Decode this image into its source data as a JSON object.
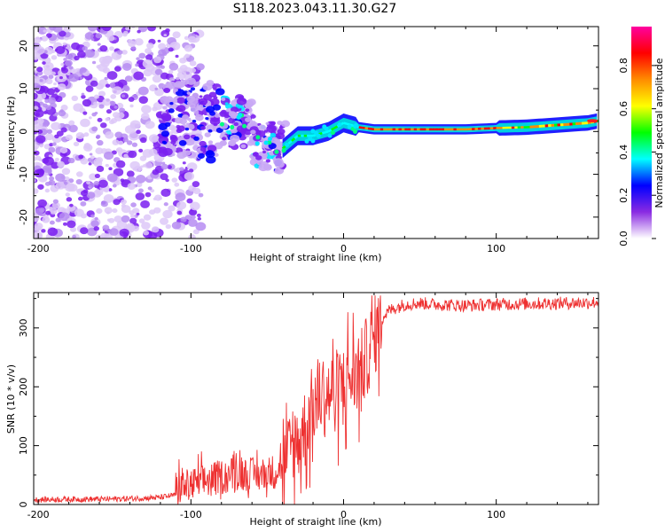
{
  "title": "S118.2023.043.11.30.G27",
  "chart_data": [
    {
      "type": "heatmap",
      "xlabel": "Height of straight line (km)",
      "ylabel": "Frequency (Hz)",
      "xlim": [
        -203,
        167
      ],
      "ylim": [
        -25,
        24.5
      ],
      "x_ticks": [
        -200,
        -100,
        0,
        100
      ],
      "y_ticks": [
        -20,
        -10,
        0,
        10,
        20
      ],
      "colorbar": {
        "label": "Normalized spectral amplitude",
        "range": [
          0,
          1
        ],
        "ticks": [
          "0.0",
          "0.2",
          "0.4",
          "0.6",
          "0.8"
        ],
        "colors": [
          "#ffffff",
          "#8a2be2",
          "#0000ff",
          "#00ffff",
          "#00ff00",
          "#ffff00",
          "#ff8c00",
          "#ff0000",
          "#ff00a0"
        ]
      },
      "ridge": {
        "x": [
          -60,
          -50,
          -40,
          -30,
          -20,
          -10,
          0,
          10,
          20,
          40,
          60,
          80,
          100,
          120,
          140,
          160,
          167
        ],
        "frequency_hz": [
          -2,
          -3,
          -4,
          -1,
          -1,
          0,
          2,
          1,
          0.5,
          0.5,
          0.5,
          0.5,
          0.8,
          1,
          1.5,
          2,
          2.5
        ]
      }
    },
    {
      "type": "line",
      "xlabel": "Height of straight line (km)",
      "ylabel": "SNR (10 * v/v)",
      "xlim": [
        -203,
        167
      ],
      "ylim": [
        0,
        360
      ],
      "x_ticks": [
        -200,
        -100,
        0,
        100
      ],
      "y_ticks": [
        0,
        100,
        200,
        300
      ],
      "color": "#ee3030",
      "series": [
        {
          "x": [
            -203,
            -180,
            -160,
            -140,
            -120,
            -100,
            -90,
            -80,
            -70,
            -60,
            -50,
            -45,
            -40,
            -35,
            -30,
            -25,
            -20,
            -15,
            -10,
            -5,
            0,
            5,
            10,
            15,
            20,
            25,
            30,
            35,
            40,
            50,
            60,
            80,
            100,
            120,
            140,
            160,
            167
          ],
          "y": [
            8,
            9,
            9,
            10,
            12,
            20,
            28,
            35,
            42,
            38,
            40,
            45,
            55,
            90,
            110,
            130,
            170,
            190,
            185,
            195,
            205,
            215,
            220,
            250,
            285,
            315,
            330,
            335,
            340,
            342,
            340,
            338,
            340,
            341,
            342,
            343,
            344
          ]
        }
      ]
    }
  ]
}
